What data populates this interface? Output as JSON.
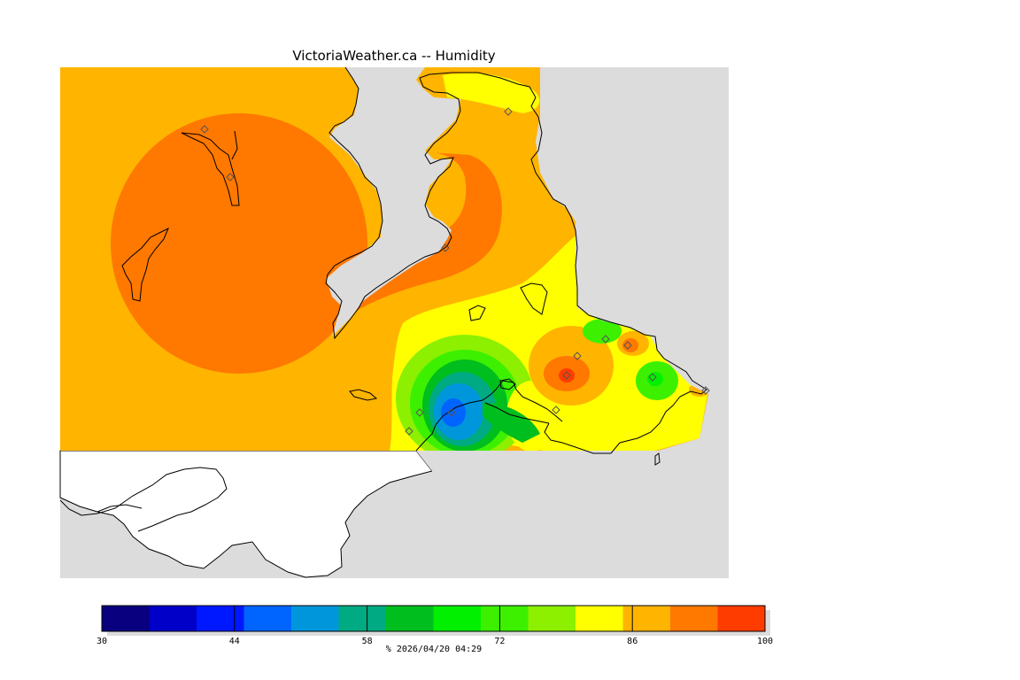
{
  "title": "VictoriaWeather.ca -- Humidity",
  "colors": {
    "land_gray": "#dcdcdc",
    "coast": "#000000",
    "no_data": "#ffffff"
  },
  "colorbar": {
    "min": 30,
    "max": 100,
    "tick_labels": [
      "30",
      "44",
      "58",
      "72",
      "86",
      "100"
    ],
    "tick_values": [
      30,
      44,
      58,
      72,
      86,
      100
    ],
    "bins": [
      {
        "from": 30,
        "to": 35,
        "color": "#08007e"
      },
      {
        "from": 35,
        "to": 40,
        "color": "#0000c8"
      },
      {
        "from": 40,
        "to": 45,
        "color": "#0018ff"
      },
      {
        "from": 45,
        "to": 50,
        "color": "#0064ff"
      },
      {
        "from": 50,
        "to": 55,
        "color": "#0096dc"
      },
      {
        "from": 55,
        "to": 60,
        "color": "#00aa82"
      },
      {
        "from": 60,
        "to": 65,
        "color": "#00be1e"
      },
      {
        "from": 65,
        "to": 70,
        "color": "#00f000"
      },
      {
        "from": 70,
        "to": 75,
        "color": "#3cf000"
      },
      {
        "from": 75,
        "to": 80,
        "color": "#8cf000"
      },
      {
        "from": 80,
        "to": 85,
        "color": "#ffff00"
      },
      {
        "from": 85,
        "to": 90,
        "color": "#ffb400"
      },
      {
        "from": 90,
        "to": 95,
        "color": "#ff7800"
      },
      {
        "from": 95,
        "to": 100,
        "color": "#ff3c00"
      }
    ]
  },
  "footer": {
    "unit": "%",
    "timestamp": "2026/04/20 04:29"
  },
  "stations": [
    {
      "id": "s1",
      "humidity": 91
    },
    {
      "id": "s2",
      "humidity": 86
    },
    {
      "id": "s3",
      "humidity": 88
    },
    {
      "id": "s4",
      "humidity": 91
    },
    {
      "id": "s5",
      "humidity": 85
    },
    {
      "id": "s6",
      "humidity": 84
    },
    {
      "id": "s7",
      "humidity": 52
    },
    {
      "id": "s8",
      "humidity": 93
    },
    {
      "id": "s9",
      "humidity": 93
    },
    {
      "id": "s10",
      "humidity": 73
    },
    {
      "id": "s11",
      "humidity": 90
    },
    {
      "id": "s12",
      "humidity": 71
    },
    {
      "id": "s13",
      "humidity": 95
    },
    {
      "id": "s14",
      "humidity": 86
    }
  ]
}
